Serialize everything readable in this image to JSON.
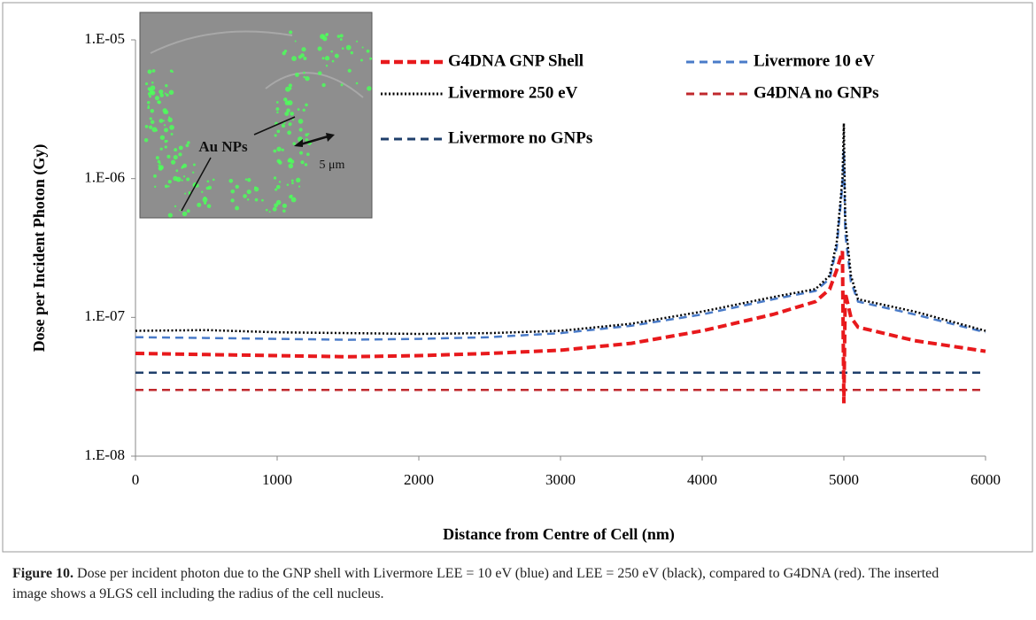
{
  "chart_data": {
    "type": "line",
    "y_label": "Dose per Incident Photon (Gy)",
    "x_label": "Distance from Centre of Cell (nm)",
    "log_y": true,
    "xlim": [
      0,
      6000
    ],
    "xticks": [
      0,
      1000,
      2000,
      3000,
      4000,
      5000,
      6000
    ],
    "ylim": [
      1e-08,
      1e-05
    ],
    "yticks": [
      {
        "value": 1e-08,
        "label": "1.E-08"
      },
      {
        "value": 1e-07,
        "label": "1.E-07"
      },
      {
        "value": 1e-06,
        "label": "1.E-06"
      },
      {
        "value": 1e-05,
        "label": "1.E-05"
      }
    ],
    "x": [
      0,
      500,
      1000,
      1500,
      2000,
      2500,
      3000,
      3500,
      4000,
      4500,
      4800,
      4900,
      4950,
      4990,
      5000,
      5010,
      5050,
      5100,
      5500,
      6000
    ],
    "series": [
      {
        "name": "G4DNA GNP Shell",
        "color": "#e8191c",
        "style": "thick-dashed",
        "values": [
          5.5e-08,
          5.4e-08,
          5.3e-08,
          5.2e-08,
          5.3e-08,
          5.5e-08,
          5.8e-08,
          6.5e-08,
          8e-08,
          1.05e-07,
          1.3e-07,
          1.6e-07,
          2.2e-07,
          3e-07,
          2.4e-08,
          1.5e-07,
          1e-07,
          8.5e-08,
          6.8e-08,
          5.7e-08
        ]
      },
      {
        "name": "Livermore 10 eV",
        "color": "#4a7bc8",
        "style": "dashed",
        "values": [
          7.2e-08,
          7.1e-08,
          7e-08,
          6.9e-08,
          7e-08,
          7.2e-08,
          7.7e-08,
          8.7e-08,
          1.05e-07,
          1.35e-07,
          1.55e-07,
          1.9e-07,
          3.2e-07,
          9e-07,
          1.6e-06,
          4e-07,
          1.8e-07,
          1.3e-07,
          1.05e-07,
          7.8e-08
        ]
      },
      {
        "name": "Livermore 250 eV",
        "color": "#000000",
        "style": "dotted",
        "values": [
          8e-08,
          8.1e-08,
          7.8e-08,
          7.7e-08,
          7.6e-08,
          7.7e-08,
          8e-08,
          9e-08,
          1.1e-07,
          1.4e-07,
          1.6e-07,
          2e-07,
          3.5e-07,
          1e-06,
          2.5e-06,
          5e-07,
          2e-07,
          1.35e-07,
          1.1e-07,
          8e-08
        ]
      },
      {
        "name": "G4DNA no GNPs",
        "color": "#c0282d",
        "style": "dashed",
        "values": [
          3e-08,
          3e-08,
          3e-08,
          3e-08,
          3e-08,
          3e-08,
          3e-08,
          3e-08,
          3e-08,
          3e-08,
          3e-08,
          3e-08,
          3e-08,
          3e-08,
          3e-08,
          3e-08,
          3e-08,
          3e-08,
          3e-08,
          3e-08
        ]
      },
      {
        "name": "Livermore no GNPs",
        "color": "#1f3f6b",
        "style": "dashed",
        "values": [
          4e-08,
          4e-08,
          4e-08,
          4e-08,
          4e-08,
          4e-08,
          4e-08,
          4e-08,
          4e-08,
          4e-08,
          4e-08,
          4e-08,
          4e-08,
          4e-08,
          4e-08,
          4e-08,
          4e-08,
          4e-08,
          4e-08,
          4e-08
        ]
      }
    ],
    "inset": {
      "label": "Au NPs",
      "scale": "5 μm"
    }
  },
  "caption": {
    "label": "Figure 10.",
    "text": "Dose per incident photon due to the GNP shell with Livermore LEE = 10 eV (blue) and LEE = 250 eV (black), compared to G4DNA (red). The inserted image shows a 9LGS cell including the radius of the cell nucleus."
  }
}
